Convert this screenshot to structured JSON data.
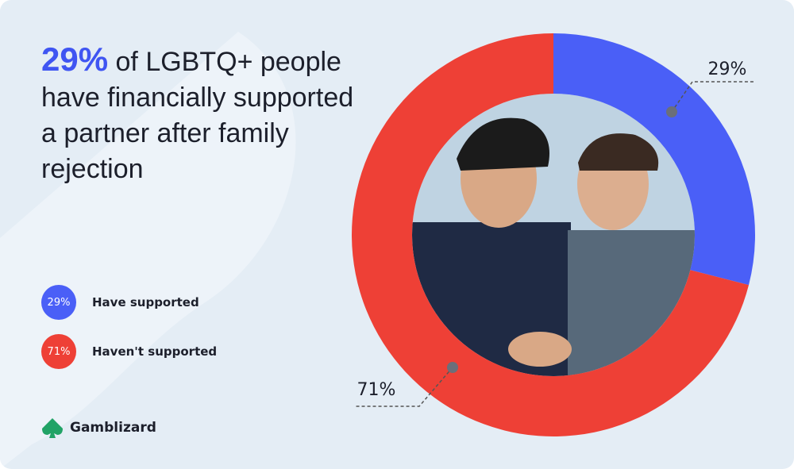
{
  "chart_data": {
    "type": "pie",
    "title": {
      "highlight": "29%",
      "text": "of LGBTQ+ people have financially supported a partner after family rejection"
    },
    "categories": [
      "Have supported",
      "Haven't supported"
    ],
    "values": [
      29,
      71
    ],
    "value_labels": [
      "29%",
      "71%"
    ],
    "colors": [
      "#4a5ff7",
      "#ee4036"
    ],
    "brand": "Gamblizard"
  }
}
